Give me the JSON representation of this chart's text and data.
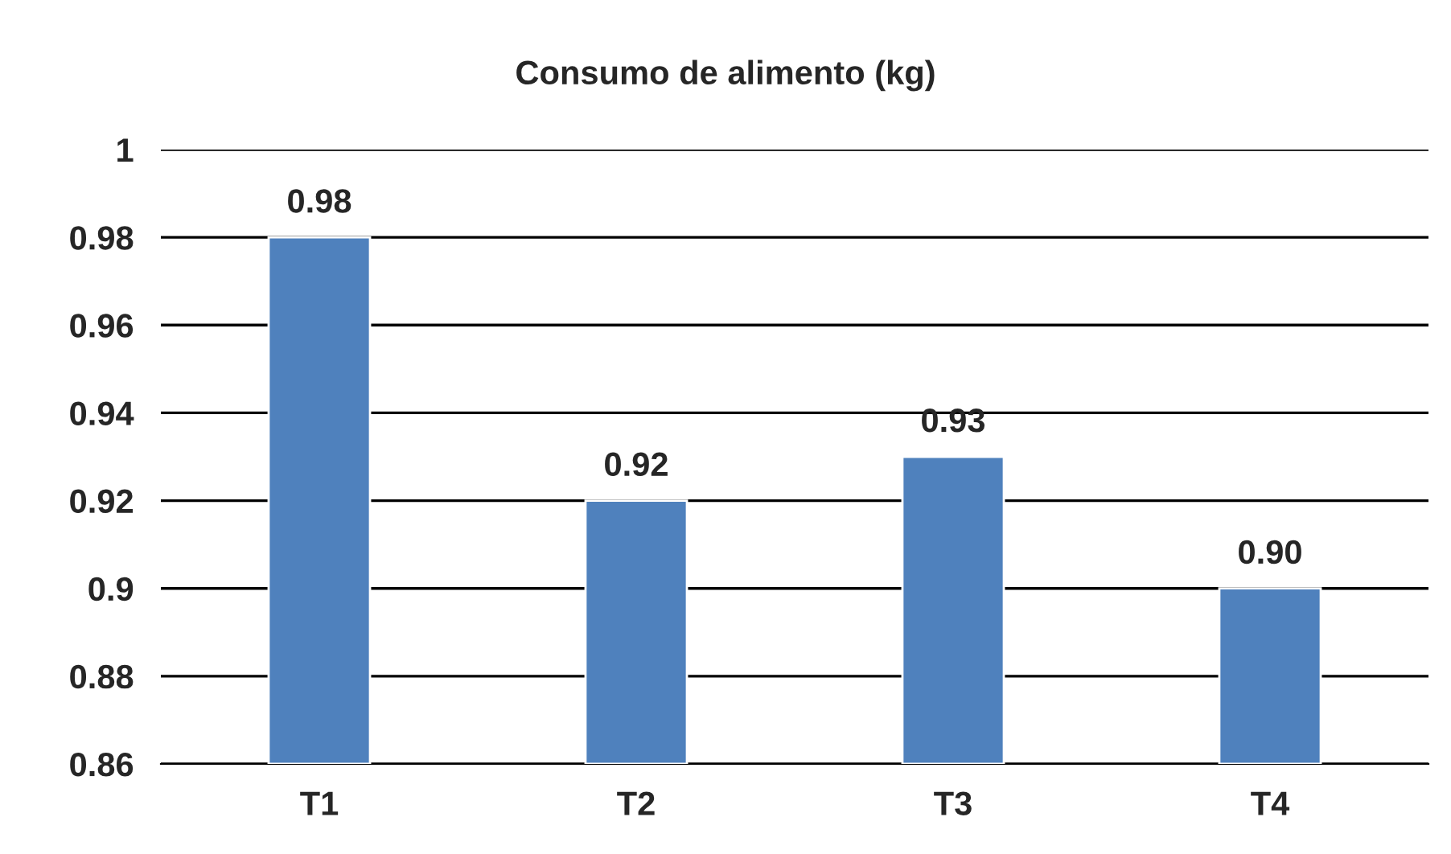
{
  "chart_data": {
    "type": "bar",
    "title": "Consumo de alimento (kg)",
    "categories": [
      "T1",
      "T2",
      "T3",
      "T4"
    ],
    "values": [
      0.98,
      0.92,
      0.93,
      0.9
    ],
    "value_labels": [
      "0.98",
      "0.92",
      "0.93",
      "0.90"
    ],
    "color": "#4f81bd",
    "ylim": [
      0.86,
      1
    ],
    "yticks": [
      0.86,
      0.88,
      0.9,
      0.92,
      0.94,
      0.96,
      0.98,
      1
    ],
    "grid": "y",
    "legend": false
  }
}
